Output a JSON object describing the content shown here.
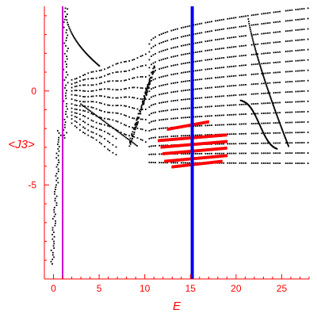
{
  "chart_data": {
    "type": "scatter",
    "title": "",
    "xlabel": "E",
    "ylabel": "<J3>",
    "xlim": [
      -1,
      28
    ],
    "ylim": [
      -10,
      4.5
    ],
    "x_ticks": [
      0,
      5,
      10,
      15,
      20,
      25
    ],
    "y_ticks": [
      0,
      -5
    ],
    "grid": false,
    "colors": {
      "axes": "#ff0000",
      "points": "#000000",
      "highlight": "#ff0000",
      "line_magenta": "#cc00cc",
      "line_blue": "#0000ee"
    },
    "vertical_lines": [
      {
        "x": 1.0,
        "color": "#cc00cc"
      },
      {
        "x": 15.2,
        "color": "#0000ee"
      }
    ],
    "series": [
      {
        "color": "#000000",
        "description_points": [
          [
            -0.5,
            -9.0
          ],
          [
            -0.3,
            -7.5
          ],
          [
            0.0,
            -6.0
          ],
          [
            0.2,
            -5.0
          ],
          [
            0.5,
            -4.0
          ],
          [
            0.8,
            -3.0
          ],
          [
            1.0,
            -2.0
          ],
          [
            1.2,
            0.5
          ],
          [
            1.3,
            4.5
          ],
          [
            1.5,
            4.3
          ],
          [
            2.0,
            3.0
          ],
          [
            3.0,
            1.8
          ],
          [
            4.0,
            1.3
          ],
          [
            5.0,
            1.2
          ],
          [
            6.0,
            1.4
          ],
          [
            7.0,
            1.7
          ],
          [
            8.0,
            2.0
          ],
          [
            9.0,
            2.3
          ],
          [
            10.0,
            2.6
          ],
          [
            10.5,
            0.0
          ],
          [
            11.0,
            1.5
          ],
          [
            12.0,
            2.5
          ],
          [
            15.0,
            3.3
          ],
          [
            20.0,
            4.0
          ],
          [
            25.0,
            4.3
          ],
          [
            28.0,
            4.4
          ],
          [
            5.0,
            -0.8
          ],
          [
            8.0,
            -2.8
          ],
          [
            9.0,
            -2.9
          ],
          [
            10.0,
            -1.0
          ],
          [
            15.0,
            -3.2
          ],
          [
            20.0,
            -3.5
          ],
          [
            25.0,
            -3.8
          ],
          [
            28.0,
            -3.9
          ],
          [
            21.5,
            3.8
          ],
          [
            22.0,
            1.5
          ],
          [
            23.0,
            -1.0
          ],
          [
            24.5,
            -2.5
          ]
        ]
      },
      {
        "color": "#ff0000",
        "description_points": [
          [
            11.5,
            -2.2
          ],
          [
            13.0,
            -1.8
          ],
          [
            15.0,
            -1.6
          ],
          [
            17.0,
            -1.6
          ],
          [
            11.5,
            -3.0
          ],
          [
            13.0,
            -2.7
          ],
          [
            15.0,
            -2.5
          ],
          [
            17.0,
            -2.5
          ],
          [
            19.0,
            -2.6
          ],
          [
            11.5,
            -3.5
          ],
          [
            13.0,
            -3.2
          ],
          [
            15.0,
            -3.0
          ],
          [
            19.0,
            -3.2
          ],
          [
            12.0,
            -3.9
          ],
          [
            15.0,
            -3.6
          ],
          [
            19.0,
            -3.6
          ]
        ]
      }
    ]
  }
}
